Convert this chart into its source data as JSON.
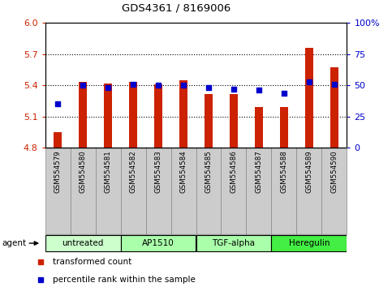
{
  "title": "GDS4361 / 8169006",
  "samples": [
    "GSM554579",
    "GSM554580",
    "GSM554581",
    "GSM554582",
    "GSM554583",
    "GSM554584",
    "GSM554585",
    "GSM554586",
    "GSM554587",
    "GSM554588",
    "GSM554589",
    "GSM554590"
  ],
  "transformed_count": [
    4.95,
    5.43,
    5.42,
    5.43,
    5.41,
    5.45,
    5.32,
    5.32,
    5.19,
    5.19,
    5.76,
    5.57
  ],
  "percentile_rank": [
    35,
    50,
    48,
    51,
    50,
    50,
    48,
    47,
    46,
    44,
    53,
    51
  ],
  "ylim_left": [
    4.8,
    6.0
  ],
  "ylim_right": [
    0,
    100
  ],
  "yticks_left": [
    4.8,
    5.1,
    5.4,
    5.7,
    6.0
  ],
  "yticks_right": [
    0,
    25,
    50,
    75,
    100
  ],
  "ytick_labels_right": [
    "0",
    "25",
    "50",
    "75",
    "100%"
  ],
  "bar_color": "#cc2200",
  "dot_color": "#0000cc",
  "bar_bottom": 4.8,
  "group_defs": [
    {
      "start": 0,
      "end": 2,
      "label": "untreated",
      "color": "#ccffcc"
    },
    {
      "start": 3,
      "end": 5,
      "label": "AP1510",
      "color": "#aaffaa"
    },
    {
      "start": 6,
      "end": 8,
      "label": "TGF-alpha",
      "color": "#aaffaa"
    },
    {
      "start": 9,
      "end": 11,
      "label": "Heregulin",
      "color": "#44ee44"
    }
  ],
  "grid_lines": [
    5.1,
    5.4,
    5.7
  ],
  "tick_color_left": "#cc2200",
  "tick_color_right": "#0000cc",
  "bar_width": 0.35,
  "dot_size": 16
}
